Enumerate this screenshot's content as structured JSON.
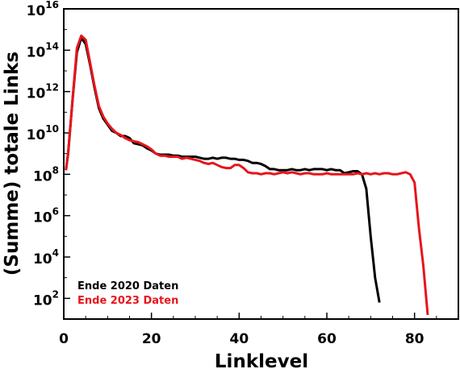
{
  "chart_data": {
    "type": "line",
    "title": "",
    "xlabel": "Linklevel",
    "ylabel": "(Summe) totale Links",
    "xlim": [
      0,
      90
    ],
    "ylim_log10": [
      1,
      16
    ],
    "yscale": "log",
    "x_ticks": [
      0,
      20,
      40,
      60,
      80
    ],
    "x_tick_labels": [
      "0",
      "20",
      "40",
      "60",
      "80"
    ],
    "y_ticks_log10": [
      2,
      4,
      6,
      8,
      10,
      12,
      14,
      16
    ],
    "y_tick_base": "10",
    "y_tick_exponents": [
      "2",
      "4",
      "6",
      "8",
      "10",
      "12",
      "14",
      "16"
    ],
    "grid": false,
    "legend_position": "bottom-left",
    "series": [
      {
        "name": "Ende 2020 Daten",
        "color": "#000000",
        "x": [
          0.5,
          1,
          2,
          3,
          4,
          5,
          6,
          7,
          8,
          9,
          10,
          11,
          12,
          13,
          14,
          15,
          16,
          17,
          18,
          19,
          20,
          21,
          22,
          23,
          24,
          25,
          26,
          27,
          28,
          29,
          30,
          31,
          32,
          33,
          34,
          35,
          36,
          37,
          38,
          39,
          40,
          41,
          42,
          43,
          44,
          45,
          46,
          47,
          48,
          49,
          50,
          51,
          52,
          53,
          54,
          55,
          56,
          57,
          58,
          59,
          60,
          61,
          62,
          63,
          64,
          65,
          66,
          67,
          68,
          69,
          70,
          71,
          72
        ],
        "log10_y": [
          8.2,
          9.0,
          11.6,
          13.9,
          14.6,
          14.3,
          13.3,
          12.2,
          11.2,
          10.7,
          10.4,
          10.1,
          10.0,
          9.85,
          9.85,
          9.75,
          9.5,
          9.45,
          9.4,
          9.25,
          9.15,
          9.0,
          8.95,
          8.95,
          8.95,
          8.9,
          8.9,
          8.85,
          8.85,
          8.85,
          8.85,
          8.8,
          8.75,
          8.75,
          8.8,
          8.75,
          8.8,
          8.8,
          8.75,
          8.75,
          8.7,
          8.7,
          8.65,
          8.55,
          8.55,
          8.5,
          8.4,
          8.25,
          8.25,
          8.2,
          8.2,
          8.2,
          8.25,
          8.2,
          8.2,
          8.25,
          8.2,
          8.25,
          8.25,
          8.25,
          8.2,
          8.25,
          8.2,
          8.2,
          8.05,
          8.1,
          8.15,
          8.15,
          8.0,
          7.3,
          5.0,
          3.0,
          1.8
        ]
      },
      {
        "name": "Ende 2023 Daten",
        "color": "#e8141b",
        "x": [
          0.5,
          1,
          2,
          3,
          4,
          5,
          6,
          7,
          8,
          9,
          10,
          11,
          12,
          13,
          14,
          15,
          16,
          17,
          18,
          19,
          20,
          21,
          22,
          23,
          24,
          25,
          26,
          27,
          28,
          29,
          30,
          31,
          32,
          33,
          34,
          35,
          36,
          37,
          38,
          39,
          40,
          41,
          42,
          43,
          44,
          45,
          46,
          47,
          48,
          49,
          50,
          51,
          52,
          53,
          54,
          55,
          56,
          57,
          58,
          59,
          60,
          61,
          62,
          63,
          64,
          65,
          66,
          67,
          68,
          69,
          70,
          71,
          72,
          73,
          74,
          75,
          76,
          77,
          78,
          79,
          80,
          81,
          82,
          83
        ],
        "log10_y": [
          8.2,
          9.0,
          11.6,
          14.1,
          14.7,
          14.5,
          13.4,
          12.3,
          11.3,
          10.8,
          10.45,
          10.2,
          10.0,
          9.9,
          9.75,
          9.65,
          9.6,
          9.55,
          9.45,
          9.35,
          9.2,
          9.0,
          8.9,
          8.9,
          8.85,
          8.85,
          8.85,
          8.75,
          8.8,
          8.75,
          8.7,
          8.65,
          8.55,
          8.5,
          8.55,
          8.45,
          8.35,
          8.3,
          8.3,
          8.45,
          8.45,
          8.3,
          8.1,
          8.05,
          8.05,
          8.0,
          8.05,
          8.05,
          8.0,
          8.05,
          8.1,
          8.05,
          8.1,
          8.05,
          8.0,
          8.05,
          8.05,
          8.0,
          8.0,
          8.0,
          8.05,
          8.0,
          8.0,
          8.0,
          8.0,
          8.0,
          8.0,
          8.05,
          8.0,
          8.05,
          8.0,
          8.05,
          8.0,
          8.05,
          8.05,
          8.0,
          8.0,
          8.05,
          8.1,
          8.0,
          7.6,
          5.4,
          3.6,
          1.2
        ]
      }
    ]
  }
}
